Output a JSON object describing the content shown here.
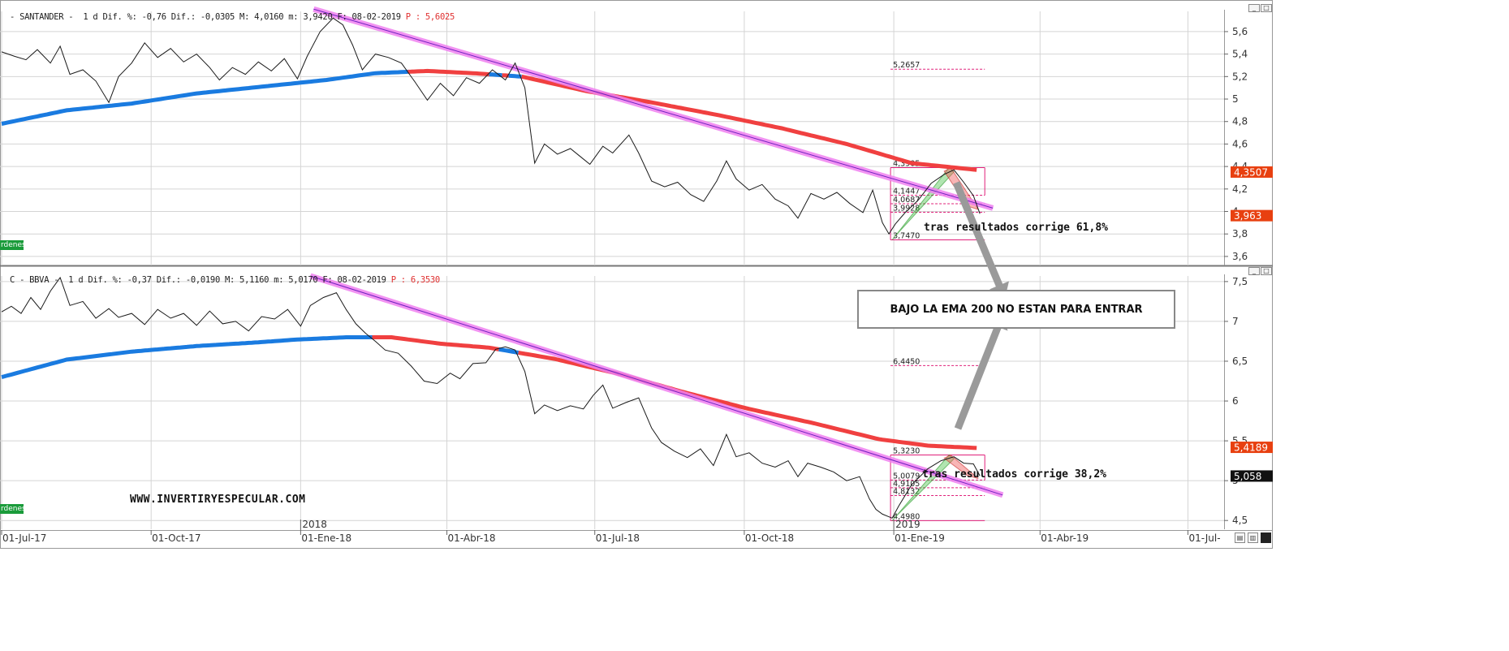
{
  "panes": [
    {
      "id": "santander",
      "header": "- SANTANDER -  1 d Dif. %: -0,76 Dif.: -0,0305 M: 4,0160 m: 3,9420 F: 08-02-2019 ",
      "header_price": "P : 5,6025",
      "ordenes_label": "rdenes",
      "annotation": "tras resultados corrige 61,8%"
    },
    {
      "id": "bbva",
      "header": "C - BBVA -  1 d Dif. %: -0,37 Dif.: -0,0190 M: 5,1160 m: 5,0170 F: 08-02-2019 ",
      "header_price": "P : 6,3530",
      "ordenes_label": "rdenes",
      "annotation": "tras resultados corrige 38,2%"
    }
  ],
  "callout": "BAJO LA EMA 200 NO ESTAN PARA ENTRAR",
  "website": "WWW.INVERTIRYESPECULAR.COM",
  "window_buttons": {
    "minimize": "_",
    "restore": "□"
  },
  "status_icons": [
    "save-icon",
    "print-icon",
    "square-icon"
  ],
  "colors": {
    "price_line": "#1a1a1a",
    "ema_above": "#1a7be0",
    "ema_below": "#f04040",
    "trendline": "#f080f0",
    "trendline_core": "#7020c0",
    "fib": "#e0207a",
    "last_price_bg": "#e84010",
    "grid": "#d4d4d4",
    "arrow": "#9a9a9a"
  },
  "chart_data": [
    {
      "type": "line",
      "title": "SANTANDER",
      "ylim": [
        3.52,
        5.78
      ],
      "yticks": [
        "5,6",
        "5,4",
        "5,2",
        "5",
        "4,8",
        "4,6",
        "4,4",
        "4,2",
        "4",
        "3,8",
        "3,6"
      ],
      "ytick_values": [
        5.6,
        5.4,
        5.2,
        5.0,
        4.8,
        4.6,
        4.4,
        4.2,
        4.0,
        3.8,
        3.6
      ],
      "x_labels": [
        "01-Jul-17",
        "01-Oct-17",
        "01-Ene-18",
        "01-Abr-18",
        "01-Jul-18",
        "01-Oct-18",
        "01-Ene-19",
        "01-Abr-19",
        "01-Jul-"
      ],
      "x_label_days": [
        0,
        92,
        184,
        274,
        365,
        457,
        549,
        639,
        730
      ],
      "year_labels": [
        {
          "label": "2018",
          "day": 184
        },
        {
          "label": "2019",
          "day": 549
        }
      ],
      "series": [
        {
          "kind": "price",
          "points": [
            [
              0,
              5.42
            ],
            [
              8,
              5.38
            ],
            [
              15,
              5.35
            ],
            [
              22,
              5.44
            ],
            [
              30,
              5.32
            ],
            [
              36,
              5.47
            ],
            [
              42,
              5.22
            ],
            [
              50,
              5.26
            ],
            [
              58,
              5.16
            ],
            [
              66,
              4.97
            ],
            [
              72,
              5.2
            ],
            [
              80,
              5.32
            ],
            [
              88,
              5.5
            ],
            [
              96,
              5.37
            ],
            [
              104,
              5.45
            ],
            [
              112,
              5.33
            ],
            [
              120,
              5.4
            ],
            [
              128,
              5.28
            ],
            [
              134,
              5.17
            ],
            [
              142,
              5.28
            ],
            [
              150,
              5.22
            ],
            [
              158,
              5.33
            ],
            [
              166,
              5.25
            ],
            [
              174,
              5.36
            ],
            [
              182,
              5.18
            ],
            [
              188,
              5.38
            ],
            [
              196,
              5.6
            ],
            [
              204,
              5.72
            ],
            [
              210,
              5.66
            ],
            [
              216,
              5.48
            ],
            [
              222,
              5.26
            ],
            [
              230,
              5.4
            ],
            [
              238,
              5.37
            ],
            [
              246,
              5.32
            ],
            [
              254,
              5.16
            ],
            [
              262,
              4.99
            ],
            [
              270,
              5.14
            ],
            [
              278,
              5.03
            ],
            [
              286,
              5.19
            ],
            [
              294,
              5.14
            ],
            [
              302,
              5.26
            ],
            [
              310,
              5.17
            ],
            [
              316,
              5.32
            ],
            [
              322,
              5.1
            ],
            [
              328,
              4.43
            ],
            [
              334,
              4.6
            ],
            [
              342,
              4.51
            ],
            [
              350,
              4.56
            ],
            [
              356,
              4.49
            ],
            [
              362,
              4.42
            ],
            [
              370,
              4.58
            ],
            [
              376,
              4.52
            ],
            [
              386,
              4.68
            ],
            [
              392,
              4.52
            ],
            [
              400,
              4.27
            ],
            [
              408,
              4.22
            ],
            [
              416,
              4.26
            ],
            [
              424,
              4.15
            ],
            [
              432,
              4.09
            ],
            [
              440,
              4.27
            ],
            [
              446,
              4.45
            ],
            [
              452,
              4.29
            ],
            [
              460,
              4.19
            ],
            [
              468,
              4.24
            ],
            [
              476,
              4.11
            ],
            [
              484,
              4.05
            ],
            [
              490,
              3.94
            ],
            [
              498,
              4.16
            ],
            [
              506,
              4.11
            ],
            [
              514,
              4.17
            ],
            [
              522,
              4.07
            ],
            [
              530,
              3.99
            ],
            [
              536,
              4.19
            ],
            [
              542,
              3.9
            ],
            [
              546,
              3.8
            ],
            [
              550,
              3.89
            ],
            [
              556,
              3.99
            ],
            [
              564,
              4.1
            ],
            [
              572,
              4.25
            ],
            [
              580,
              4.33
            ],
            [
              586,
              4.37
            ],
            [
              592,
              4.26
            ],
            [
              598,
              4.14
            ],
            [
              602,
              3.98
            ]
          ]
        },
        {
          "kind": "ema200",
          "points": [
            [
              0,
              4.78
            ],
            [
              40,
              4.9
            ],
            [
              80,
              4.96
            ],
            [
              120,
              5.05
            ],
            [
              160,
              5.11
            ],
            [
              200,
              5.17
            ],
            [
              230,
              5.23
            ],
            [
              262,
              5.25
            ],
            [
              290,
              5.23
            ],
            [
              320,
              5.2
            ],
            [
              360,
              5.07
            ],
            [
              400,
              4.97
            ],
            [
              440,
              4.86
            ],
            [
              480,
              4.74
            ],
            [
              520,
              4.6
            ],
            [
              560,
              4.43
            ],
            [
              600,
              4.37
            ]
          ]
        }
      ],
      "trendline": [
        [
          192,
          5.8
        ],
        [
          610,
          4.03
        ]
      ],
      "fib_levels": [
        {
          "label": "5,2657",
          "value": 5.2657
        },
        {
          "label": "4,3905",
          "value": 4.3905
        },
        {
          "label": "4,1447",
          "value": 4.1447
        },
        {
          "label": "4,0687",
          "value": 4.0687
        },
        {
          "label": "3,9928",
          "value": 3.9928
        },
        {
          "label": "3,7470",
          "value": 3.747
        }
      ],
      "last_labels": [
        {
          "label": "4,3507",
          "value": 4.3507,
          "bg": "#e84010",
          "color": "#ffffff"
        },
        {
          "label": "3,963",
          "value": 3.963,
          "bg": "#e84010",
          "color": "#ffffff"
        }
      ]
    },
    {
      "type": "line",
      "title": "BBVA",
      "ylim": [
        4.39,
        7.57
      ],
      "yticks": [
        "7,5",
        "7",
        "6,5",
        "6",
        "5,5",
        "5",
        "4,5"
      ],
      "ytick_values": [
        7.5,
        7.0,
        6.5,
        6.0,
        5.5,
        5.0,
        4.5
      ],
      "x_labels": [
        "01-Jul-17",
        "01-Oct-17",
        "01-Ene-18",
        "01-Abr-18",
        "01-Jul-18",
        "01-Oct-18",
        "01-Ene-19",
        "01-Abr-19",
        "01-Jul-"
      ],
      "x_label_days": [
        0,
        92,
        184,
        274,
        365,
        457,
        549,
        639,
        730
      ],
      "year_labels": [
        {
          "label": "2018",
          "day": 184
        },
        {
          "label": "2019",
          "day": 549
        }
      ],
      "series": [
        {
          "kind": "price",
          "points": [
            [
              0,
              7.12
            ],
            [
              6,
              7.19
            ],
            [
              12,
              7.1
            ],
            [
              18,
              7.3
            ],
            [
              24,
              7.15
            ],
            [
              30,
              7.38
            ],
            [
              36,
              7.55
            ],
            [
              42,
              7.2
            ],
            [
              50,
              7.25
            ],
            [
              58,
              7.04
            ],
            [
              66,
              7.16
            ],
            [
              72,
              7.05
            ],
            [
              80,
              7.1
            ],
            [
              88,
              6.96
            ],
            [
              96,
              7.15
            ],
            [
              104,
              7.04
            ],
            [
              112,
              7.1
            ],
            [
              120,
              6.95
            ],
            [
              128,
              7.13
            ],
            [
              136,
              6.97
            ],
            [
              144,
              7.0
            ],
            [
              152,
              6.88
            ],
            [
              160,
              7.06
            ],
            [
              168,
              7.03
            ],
            [
              176,
              7.15
            ],
            [
              184,
              6.94
            ],
            [
              190,
              7.2
            ],
            [
              198,
              7.3
            ],
            [
              206,
              7.36
            ],
            [
              212,
              7.15
            ],
            [
              218,
              6.97
            ],
            [
              224,
              6.85
            ],
            [
              230,
              6.75
            ],
            [
              236,
              6.64
            ],
            [
              244,
              6.6
            ],
            [
              252,
              6.44
            ],
            [
              260,
              6.25
            ],
            [
              268,
              6.22
            ],
            [
              276,
              6.35
            ],
            [
              282,
              6.28
            ],
            [
              290,
              6.47
            ],
            [
              298,
              6.48
            ],
            [
              304,
              6.65
            ],
            [
              310,
              6.68
            ],
            [
              316,
              6.64
            ],
            [
              322,
              6.37
            ],
            [
              328,
              5.84
            ],
            [
              334,
              5.95
            ],
            [
              342,
              5.88
            ],
            [
              350,
              5.94
            ],
            [
              358,
              5.9
            ],
            [
              364,
              6.07
            ],
            [
              370,
              6.2
            ],
            [
              376,
              5.91
            ],
            [
              384,
              5.98
            ],
            [
              392,
              6.04
            ],
            [
              400,
              5.66
            ],
            [
              406,
              5.48
            ],
            [
              414,
              5.37
            ],
            [
              422,
              5.29
            ],
            [
              430,
              5.4
            ],
            [
              438,
              5.19
            ],
            [
              446,
              5.58
            ],
            [
              452,
              5.3
            ],
            [
              460,
              5.35
            ],
            [
              468,
              5.22
            ],
            [
              476,
              5.17
            ],
            [
              484,
              5.25
            ],
            [
              490,
              5.05
            ],
            [
              496,
              5.22
            ],
            [
              504,
              5.17
            ],
            [
              512,
              5.11
            ],
            [
              520,
              5.0
            ],
            [
              528,
              5.05
            ],
            [
              534,
              4.77
            ],
            [
              538,
              4.64
            ],
            [
              542,
              4.58
            ],
            [
              548,
              4.53
            ],
            [
              552,
              4.68
            ],
            [
              560,
              4.95
            ],
            [
              570,
              5.15
            ],
            [
              578,
              5.25
            ],
            [
              586,
              5.3
            ],
            [
              592,
              5.22
            ],
            [
              598,
              5.21
            ],
            [
              602,
              5.06
            ]
          ]
        },
        {
          "kind": "ema200",
          "points": [
            [
              0,
              6.3
            ],
            [
              40,
              6.52
            ],
            [
              80,
              6.62
            ],
            [
              120,
              6.69
            ],
            [
              160,
              6.74
            ],
            [
              180,
              6.77
            ],
            [
              212,
              6.8
            ],
            [
              240,
              6.8
            ],
            [
              270,
              6.72
            ],
            [
              300,
              6.67
            ],
            [
              340,
              6.53
            ],
            [
              380,
              6.34
            ],
            [
              420,
              6.11
            ],
            [
              460,
              5.9
            ],
            [
              500,
              5.72
            ],
            [
              540,
              5.52
            ],
            [
              570,
              5.44
            ],
            [
              600,
              5.41
            ]
          ]
        }
      ],
      "trendline": [
        [
          190,
          7.57
        ],
        [
          616,
          4.82
        ]
      ],
      "fib_levels": [
        {
          "label": "6,4450",
          "value": 6.445
        },
        {
          "label": "5,3230",
          "value": 5.323
        },
        {
          "label": "5,0079",
          "value": 5.0079
        },
        {
          "label": "4,9105",
          "value": 4.9105
        },
        {
          "label": "4,8132",
          "value": 4.8132
        },
        {
          "label": "4,4980",
          "value": 4.498
        }
      ],
      "last_labels": [
        {
          "label": "5,4189",
          "value": 5.4189,
          "bg": "#e84010",
          "color": "#ffffff"
        },
        {
          "label": "5,058",
          "value": 5.058,
          "bg": "#111111",
          "color": "#ffffff"
        }
      ]
    }
  ]
}
